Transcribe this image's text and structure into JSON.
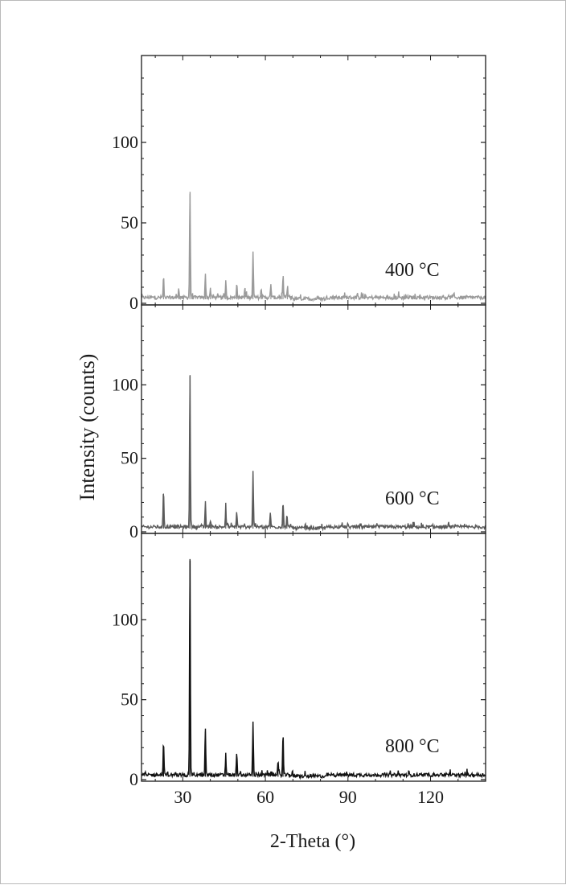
{
  "chart_data": {
    "type": "line",
    "layout": "stacked-panels",
    "shared_x_axis": {
      "label": "2-Theta (°)",
      "ticks": [
        30,
        60,
        90,
        120
      ],
      "range": [
        15,
        140
      ]
    },
    "shared_y_axis": {
      "label": "Intensity (counts)",
      "ticks": [
        0,
        50,
        100
      ],
      "range": [
        0,
        150
      ]
    },
    "panels": [
      {
        "label": "400 °C",
        "color": "#9a9a9a",
        "baseline": 2.5,
        "peaks": [
          {
            "x": 23.0,
            "y": 12
          },
          {
            "x": 28.5,
            "y": 6
          },
          {
            "x": 32.6,
            "y": 68
          },
          {
            "x": 38.2,
            "y": 15
          },
          {
            "x": 40.0,
            "y": 6
          },
          {
            "x": 45.6,
            "y": 10
          },
          {
            "x": 49.6,
            "y": 9
          },
          {
            "x": 52.5,
            "y": 5
          },
          {
            "x": 55.5,
            "y": 28
          },
          {
            "x": 58.5,
            "y": 5
          },
          {
            "x": 62.0,
            "y": 8
          },
          {
            "x": 66.4,
            "y": 12
          },
          {
            "x": 68.0,
            "y": 6
          }
        ]
      },
      {
        "label": "600 °C",
        "color": "#5a5a5a",
        "baseline": 2.2,
        "peaks": [
          {
            "x": 23.0,
            "y": 26
          },
          {
            "x": 32.6,
            "y": 106
          },
          {
            "x": 38.2,
            "y": 17
          },
          {
            "x": 40.0,
            "y": 5
          },
          {
            "x": 45.6,
            "y": 13
          },
          {
            "x": 49.6,
            "y": 11
          },
          {
            "x": 55.5,
            "y": 39
          },
          {
            "x": 61.8,
            "y": 10
          },
          {
            "x": 66.4,
            "y": 17
          },
          {
            "x": 67.8,
            "y": 8
          }
        ]
      },
      {
        "label": "800 °C",
        "color": "#111111",
        "baseline": 1.8,
        "peaks": [
          {
            "x": 23.0,
            "y": 21
          },
          {
            "x": 32.6,
            "y": 138
          },
          {
            "x": 38.2,
            "y": 30
          },
          {
            "x": 45.6,
            "y": 12
          },
          {
            "x": 49.6,
            "y": 14
          },
          {
            "x": 55.5,
            "y": 33
          },
          {
            "x": 64.6,
            "y": 8
          },
          {
            "x": 66.4,
            "y": 26
          }
        ]
      }
    ]
  }
}
